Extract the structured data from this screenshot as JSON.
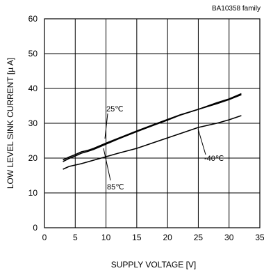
{
  "chart_data": {
    "type": "line",
    "family_note": "BA10358  family",
    "xlabel": "SUPPLY VOLTAGE [V]",
    "ylabel": "LOW LEVEL SINK CURRENT [µ A]",
    "xlim": [
      0,
      35
    ],
    "ylim": [
      0,
      60
    ],
    "x_ticks": [
      0,
      5,
      10,
      15,
      20,
      25,
      30,
      35
    ],
    "y_ticks": [
      0,
      10,
      20,
      30,
      40,
      50,
      60
    ],
    "grid": true,
    "series": [
      {
        "name": "25℃",
        "x": [
          3,
          4,
          5,
          6,
          7,
          8,
          10,
          12,
          15,
          18,
          20,
          22,
          25,
          28,
          30,
          32
        ],
        "y": [
          19.5,
          20.3,
          21.0,
          21.8,
          22.2,
          22.8,
          24.3,
          25.7,
          27.8,
          29.8,
          31.1,
          32.4,
          34.0,
          35.6,
          36.8,
          38.2
        ]
      },
      {
        "name": "85℃",
        "x": [
          3,
          4,
          5,
          6,
          7,
          8,
          10,
          12,
          15,
          18,
          20,
          22,
          25,
          28,
          30,
          32
        ],
        "y": [
          19.0,
          19.9,
          20.6,
          21.4,
          21.9,
          22.5,
          24.0,
          25.5,
          27.6,
          29.6,
          30.9,
          32.3,
          34.0,
          35.9,
          37.0,
          38.5
        ]
      },
      {
        "name": "-40℃",
        "x": [
          3,
          4,
          5,
          6,
          8,
          10,
          12,
          15,
          18,
          20,
          22,
          25,
          28,
          30,
          32
        ],
        "y": [
          16.8,
          17.6,
          18.0,
          18.4,
          19.4,
          20.4,
          21.4,
          22.8,
          24.6,
          25.8,
          27.0,
          28.8,
          30.0,
          31.0,
          32.2
        ]
      }
    ],
    "annotations": [
      {
        "text": "25℃",
        "series": 0
      },
      {
        "text": "85℃",
        "series": 1
      },
      {
        "text": "-40℃",
        "series": 2
      }
    ]
  }
}
